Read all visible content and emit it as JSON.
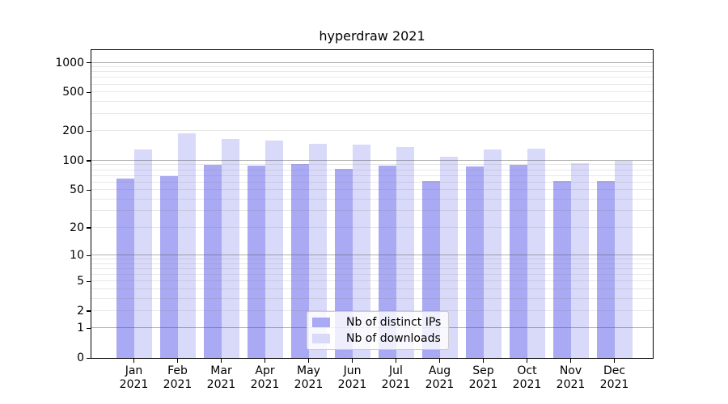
{
  "chart_data": {
    "type": "bar",
    "title": "hyperdraw 2021",
    "scale": "log1p",
    "categories": [
      "Jan 2021",
      "Feb 2021",
      "Mar 2021",
      "Apr 2021",
      "May 2021",
      "Jun 2021",
      "Jul 2021",
      "Aug 2021",
      "Sep 2021",
      "Oct 2021",
      "Nov 2021",
      "Dec 2021"
    ],
    "series": [
      {
        "name": "Nb of distinct IPs",
        "color": "#a9a9f4",
        "values": [
          65,
          70,
          91,
          89,
          93,
          83,
          89,
          62,
          87,
          90,
          62,
          62
        ]
      },
      {
        "name": "Nb of downloads",
        "color": "#d9d9f9",
        "values": [
          130,
          190,
          167,
          160,
          149,
          147,
          139,
          109,
          131,
          133,
          95,
          100
        ]
      }
    ],
    "ytick_labels": [
      0,
      1,
      2,
      5,
      10,
      20,
      50,
      100,
      200,
      500,
      1000
    ],
    "major_gridlines": [
      1,
      10,
      100,
      1000
    ],
    "minor_gridlines": [
      2,
      3,
      4,
      5,
      6,
      7,
      8,
      9,
      20,
      30,
      40,
      50,
      60,
      70,
      80,
      90,
      200,
      300,
      400,
      500,
      600,
      700,
      800,
      900
    ],
    "ylim": [
      0,
      1340
    ],
    "xlabel": "",
    "ylabel": "",
    "grid": "both",
    "legend_position": "lower center"
  },
  "colors": {
    "axis": "#000000",
    "major_grid": "#505050",
    "minor_grid": "#808080",
    "legend_border": "#cccccc"
  }
}
